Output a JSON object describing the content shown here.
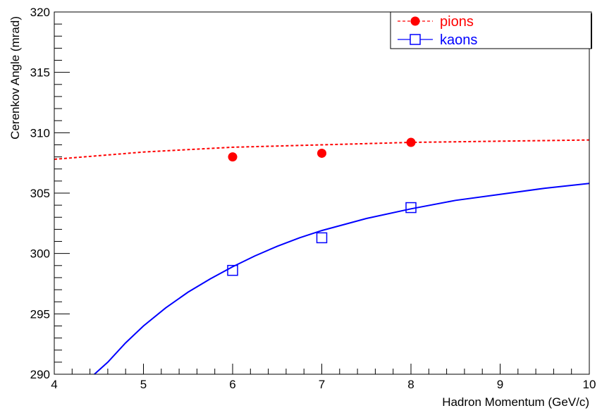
{
  "chart_data": {
    "type": "scatter",
    "title": "",
    "xlabel": "Hadron Momentum (GeV/c)",
    "ylabel": "Cerenkov Angle (mrad)",
    "xlim": [
      4,
      10
    ],
    "ylim": [
      290,
      320
    ],
    "x_ticks": [
      4,
      5,
      6,
      7,
      8,
      9,
      10
    ],
    "y_ticks": [
      290,
      295,
      300,
      305,
      310,
      315,
      320
    ],
    "grid": false,
    "legend_position": "top-right",
    "series": [
      {
        "name": "pions",
        "color": "#ff0000",
        "marker": "filled-circle",
        "line_style": "dashed",
        "points": [
          {
            "x": 6,
            "y": 308.0
          },
          {
            "x": 7,
            "y": 308.3
          },
          {
            "x": 8,
            "y": 309.2
          }
        ],
        "curve": [
          {
            "x": 4.0,
            "y": 307.8
          },
          {
            "x": 4.5,
            "y": 308.1
          },
          {
            "x": 5.0,
            "y": 308.4
          },
          {
            "x": 5.5,
            "y": 308.6
          },
          {
            "x": 6.0,
            "y": 308.8
          },
          {
            "x": 6.5,
            "y": 308.9
          },
          {
            "x": 7.0,
            "y": 309.0
          },
          {
            "x": 7.5,
            "y": 309.1
          },
          {
            "x": 8.0,
            "y": 309.2
          },
          {
            "x": 8.5,
            "y": 309.25
          },
          {
            "x": 9.0,
            "y": 309.3
          },
          {
            "x": 9.5,
            "y": 309.35
          },
          {
            "x": 10.0,
            "y": 309.4
          }
        ]
      },
      {
        "name": "kaons",
        "color": "#0000ff",
        "marker": "open-square",
        "line_style": "solid",
        "points": [
          {
            "x": 6,
            "y": 298.6
          },
          {
            "x": 7,
            "y": 301.3
          },
          {
            "x": 8,
            "y": 303.8
          }
        ],
        "curve": [
          {
            "x": 4.45,
            "y": 290.0
          },
          {
            "x": 4.6,
            "y": 291.0
          },
          {
            "x": 4.8,
            "y": 292.6
          },
          {
            "x": 5.0,
            "y": 294.0
          },
          {
            "x": 5.25,
            "y": 295.5
          },
          {
            "x": 5.5,
            "y": 296.8
          },
          {
            "x": 5.75,
            "y": 297.9
          },
          {
            "x": 6.0,
            "y": 298.9
          },
          {
            "x": 6.25,
            "y": 299.8
          },
          {
            "x": 6.5,
            "y": 300.6
          },
          {
            "x": 6.75,
            "y": 301.3
          },
          {
            "x": 7.0,
            "y": 301.9
          },
          {
            "x": 7.5,
            "y": 302.9
          },
          {
            "x": 8.0,
            "y": 303.7
          },
          {
            "x": 8.5,
            "y": 304.4
          },
          {
            "x": 9.0,
            "y": 304.9
          },
          {
            "x": 9.5,
            "y": 305.4
          },
          {
            "x": 10.0,
            "y": 305.8
          }
        ]
      }
    ]
  }
}
